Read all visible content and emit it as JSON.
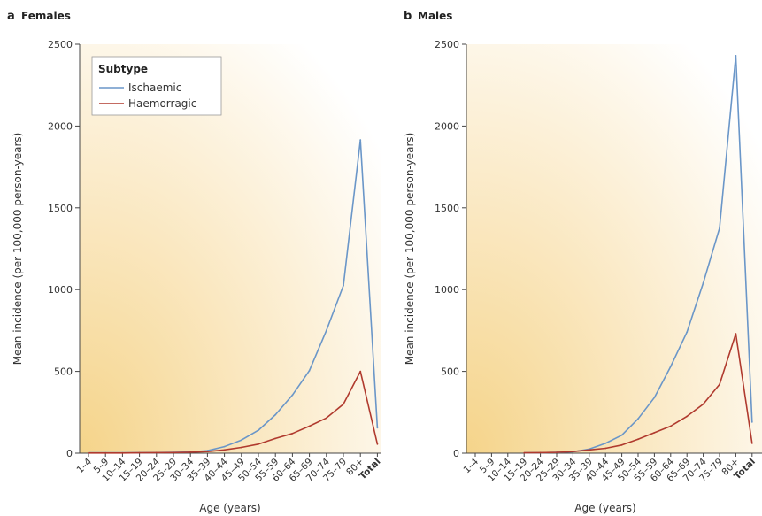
{
  "figure": {
    "panels": [
      {
        "letter": "a",
        "title": "Females"
      },
      {
        "letter": "b",
        "title": "Males"
      }
    ],
    "legend": {
      "title": "Subtype",
      "items": [
        "Ischaemic",
        "Haemorragic"
      ]
    }
  },
  "chart_data": [
    {
      "type": "line",
      "title": "Females",
      "xlabel": "Age (years)",
      "ylabel": "Mean incidence (per 100,000 person-years)",
      "ylim": [
        0,
        2500
      ],
      "yticks": [
        0,
        500,
        1000,
        1500,
        2000,
        2500
      ],
      "grid": false,
      "legend_position": "top-left",
      "categories": [
        "1–4",
        "5–9",
        "10–14",
        "15–19",
        "20–24",
        "25–29",
        "30–34",
        "35–39",
        "40–44",
        "45–49",
        "50–54",
        "55–59",
        "60–64",
        "65–69",
        "70–74",
        "75–79",
        "80+",
        "Total"
      ],
      "series": [
        {
          "name": "Ischaemic",
          "color": "#6a96c8",
          "values": [
            2,
            2,
            2,
            3,
            4,
            5,
            7,
            15,
            40,
            80,
            140,
            235,
            355,
            505,
            750,
            1025,
            1915,
            155
          ]
        },
        {
          "name": "Haemorragic",
          "color": "#b03a2e",
          "values": [
            1,
            1,
            1,
            2,
            3,
            4,
            6,
            10,
            20,
            35,
            55,
            90,
            120,
            165,
            215,
            300,
            500,
            55
          ]
        }
      ]
    },
    {
      "type": "line",
      "title": "Males",
      "xlabel": "Age (years)",
      "ylabel": "Mean incidence (per 100,000 person-years)",
      "ylim": [
        0,
        2500
      ],
      "yticks": [
        0,
        500,
        1000,
        1500,
        2000,
        2500
      ],
      "grid": false,
      "categories": [
        "1–4",
        "5–9",
        "10–14",
        "15–19",
        "20–24",
        "25–29",
        "30–34",
        "35–39",
        "40–44",
        "45–49",
        "50–54",
        "55–59",
        "60–64",
        "65–69",
        "70–74",
        "75–79",
        "80+",
        "Total"
      ],
      "series": [
        {
          "name": "Ischaemic",
          "color": "#6a96c8",
          "values": [
            null,
            null,
            null,
            2,
            3,
            5,
            8,
            25,
            60,
            110,
            210,
            340,
            530,
            740,
            1040,
            1375,
            2430,
            190
          ]
        },
        {
          "name": "Haemorragic",
          "color": "#b03a2e",
          "values": [
            null,
            null,
            null,
            2,
            3,
            5,
            10,
            20,
            30,
            50,
            85,
            125,
            165,
            225,
            300,
            420,
            730,
            60
          ]
        }
      ]
    }
  ]
}
